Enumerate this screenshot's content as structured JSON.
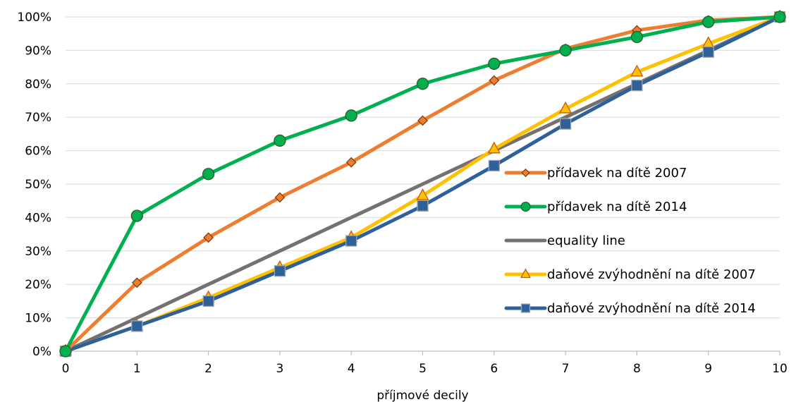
{
  "chart_data": {
    "type": "line",
    "xlabel": "příjmové decily",
    "ylabel": "",
    "x": [
      0,
      1,
      2,
      3,
      4,
      5,
      6,
      7,
      8,
      9,
      10
    ],
    "xlim": [
      0,
      10
    ],
    "ylim": [
      0,
      100
    ],
    "y_ticks": [
      "0%",
      "10%",
      "20%",
      "30%",
      "40%",
      "50%",
      "60%",
      "70%",
      "80%",
      "90%",
      "100%"
    ],
    "x_ticks": [
      "0",
      "1",
      "2",
      "3",
      "4",
      "5",
      "6",
      "7",
      "8",
      "9",
      "10"
    ],
    "grid": "horizontal",
    "legend_position": "right",
    "series": [
      {
        "name": "equality line",
        "color": "#767171",
        "marker": "none",
        "values": [
          0,
          10,
          20,
          30,
          40,
          50,
          60,
          70,
          80,
          90,
          100
        ]
      },
      {
        "name": "daňové zvýhodnění na dítě 2007",
        "color": "#FFC000",
        "marker": "triangle",
        "marker_fill": "#FFC000",
        "marker_stroke": "#C55A11",
        "values": [
          0,
          7.5,
          16,
          25,
          34,
          46.5,
          60.5,
          72.5,
          83.5,
          92,
          100
        ]
      },
      {
        "name": "daňové zvýhodnění na dítě 2014",
        "color": "#2E6199",
        "marker": "square",
        "marker_fill": "#2E6199",
        "marker_stroke": "#A5A5A5",
        "values": [
          0,
          7.5,
          15,
          24,
          33,
          43.5,
          55.5,
          68,
          79.5,
          89.5,
          100
        ]
      },
      {
        "name": "přídavek na dítě 2007",
        "color": "#ED7D31",
        "marker": "diamond",
        "marker_fill": "#ED7D31",
        "marker_stroke": "#843C0C",
        "values": [
          0,
          20.5,
          34,
          46,
          56.5,
          69,
          81,
          90.5,
          96,
          99,
          100
        ]
      },
      {
        "name": "přídavek na dítě 2014",
        "color": "#00B050",
        "marker": "circle",
        "marker_fill": "#00B050",
        "marker_stroke": "#375623",
        "values": [
          0,
          40.5,
          53,
          63,
          70.5,
          80,
          86,
          90,
          94,
          98.5,
          100
        ]
      }
    ],
    "legend_order": [
      "přídavek na dítě 2007",
      "přídavek na dítě 2014",
      "equality line",
      "daňové zvýhodnění na dítě 2007",
      "daňové zvýhodnění na dítě 2014"
    ]
  }
}
